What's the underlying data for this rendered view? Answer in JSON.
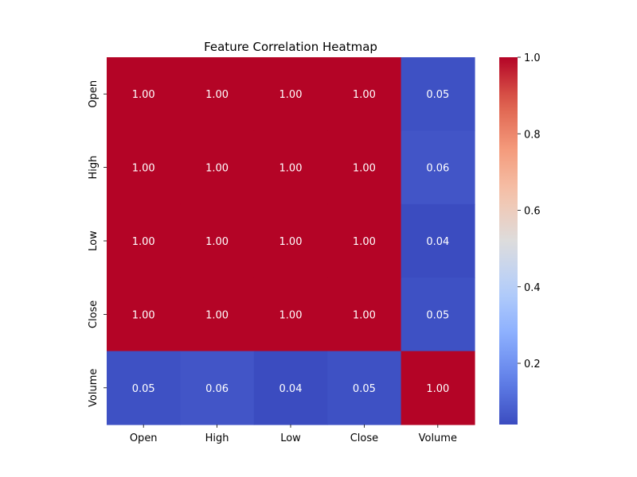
{
  "chart_data": {
    "type": "heatmap",
    "title": "Feature Correlation Heatmap",
    "xlabel": "",
    "ylabel": "",
    "x_categories": [
      "Open",
      "High",
      "Low",
      "Close",
      "Volume"
    ],
    "y_categories": [
      "Open",
      "High",
      "Low",
      "Close",
      "Volume"
    ],
    "values": [
      [
        1.0,
        1.0,
        1.0,
        1.0,
        0.05
      ],
      [
        1.0,
        1.0,
        1.0,
        1.0,
        0.06
      ],
      [
        1.0,
        1.0,
        1.0,
        1.0,
        0.04
      ],
      [
        1.0,
        1.0,
        1.0,
        1.0,
        0.05
      ],
      [
        0.05,
        0.06,
        0.04,
        0.05,
        1.0
      ]
    ],
    "value_labels": [
      [
        "1.00",
        "1.00",
        "1.00",
        "1.00",
        "0.05"
      ],
      [
        "1.00",
        "1.00",
        "1.00",
        "1.00",
        "0.06"
      ],
      [
        "1.00",
        "1.00",
        "1.00",
        "1.00",
        "0.04"
      ],
      [
        "1.00",
        "1.00",
        "1.00",
        "1.00",
        "0.05"
      ],
      [
        "0.05",
        "0.06",
        "0.04",
        "0.05",
        "1.00"
      ]
    ],
    "colorbar": {
      "colormap": "coolwarm",
      "vmin": 0.04,
      "vmax": 1.0,
      "ticks": [
        0.2,
        0.4,
        0.6,
        0.8,
        1.0
      ],
      "tick_labels": [
        "0.2",
        "0.4",
        "0.6",
        "0.8",
        "1.0"
      ]
    },
    "colors": {
      "high": "#b40426",
      "mid": "#dddcdc",
      "low": "#3b4cc0",
      "label_on_dark": "#ffffff"
    },
    "grid": false,
    "legend": "colorbar-right"
  }
}
